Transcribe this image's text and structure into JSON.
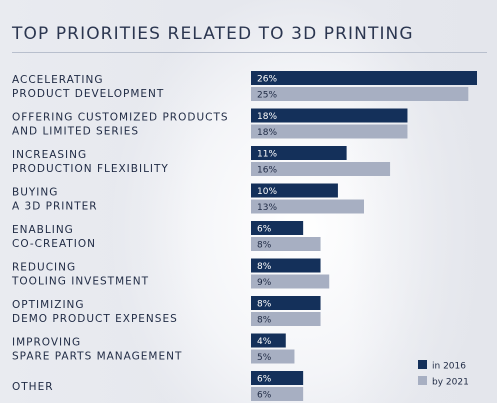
{
  "chart_data": {
    "type": "bar",
    "orientation": "horizontal",
    "title": "TOP PRIORITIES RELATED TO 3D PRINTING",
    "categories": [
      [
        "ACCELERATING",
        "PRODUCT DEVELOPMENT"
      ],
      [
        "OFFERING CUSTOMIZED PRODUCTS",
        "AND LIMITED SERIES"
      ],
      [
        "INCREASING",
        "PRODUCTION FLEXIBILITY"
      ],
      [
        "BUYING",
        "A 3D PRINTER"
      ],
      [
        "ENABLING",
        "CO-CREATION"
      ],
      [
        "REDUCING",
        "TOOLING INVESTMENT"
      ],
      [
        "OPTIMIZING",
        "DEMO PRODUCT EXPENSES"
      ],
      [
        "IMPROVING",
        "SPARE PARTS MANAGEMENT"
      ],
      [
        "OTHER"
      ]
    ],
    "series": [
      {
        "name": "in 2016",
        "color": "#14305a",
        "label_color": "#ffffff",
        "values": [
          26,
          18,
          11,
          10,
          6,
          8,
          8,
          4,
          6
        ]
      },
      {
        "name": "by 2021",
        "color": "#a7afc2",
        "label_color": "#1f2a44",
        "values": [
          25,
          18,
          16,
          13,
          8,
          9,
          8,
          5,
          6
        ]
      }
    ],
    "value_suffix": "%",
    "xlim": [
      0,
      26
    ],
    "legend_position": "bottom-right",
    "grid": false
  }
}
